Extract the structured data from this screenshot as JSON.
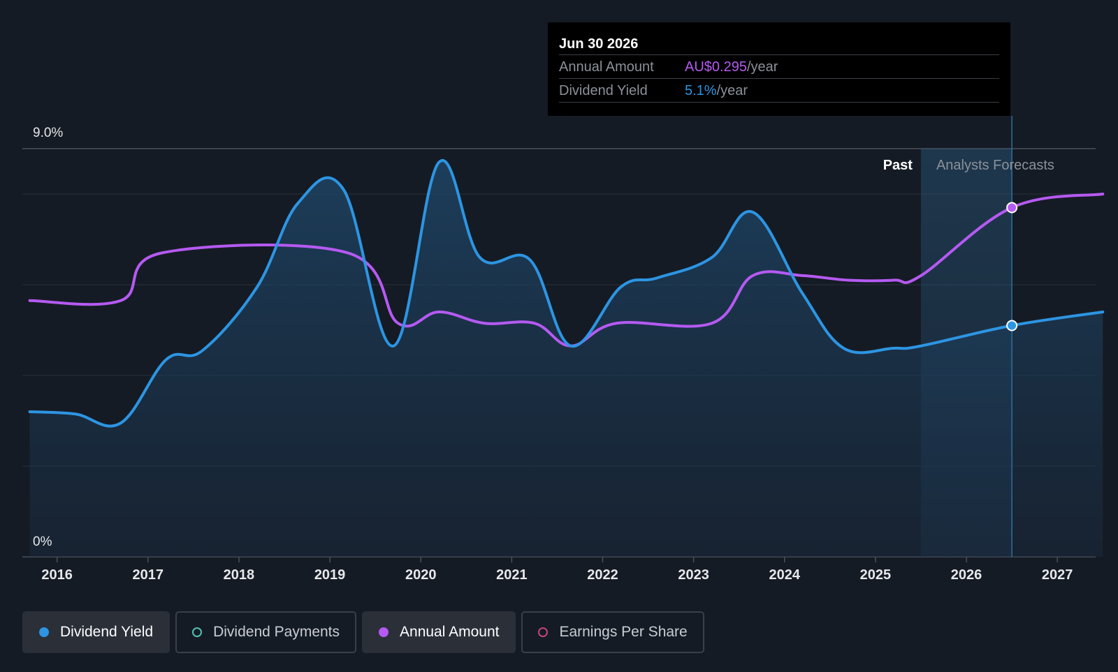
{
  "tooltip": {
    "date": "Jun 30 2026",
    "rows": [
      {
        "label": "Annual Amount",
        "value": "AU$0.295",
        "unit": "/year"
      },
      {
        "label": "Dividend Yield",
        "value": "5.1%",
        "unit": "/year"
      }
    ]
  },
  "legend": [
    {
      "label": "Dividend Yield",
      "color": "#2d95e3",
      "active": true,
      "filled": true
    },
    {
      "label": "Dividend Payments",
      "color": "#4fc3b4",
      "active": false,
      "filled": false
    },
    {
      "label": "Annual Amount",
      "color": "#b55af2",
      "active": true,
      "filled": true
    },
    {
      "label": "Earnings Per Share",
      "color": "#c2457a",
      "active": false,
      "filled": false
    }
  ],
  "chart_data": {
    "type": "line",
    "y_tick_labels": [
      "9.0%",
      "0%"
    ],
    "ylim": [
      0,
      9.0
    ],
    "x_tick_labels": [
      "2016",
      "2017",
      "2018",
      "2019",
      "2020",
      "2021",
      "2022",
      "2023",
      "2024",
      "2025",
      "2026",
      "2027"
    ],
    "xlim": [
      2015.68,
      2027.5
    ],
    "regions": {
      "past_label": "Past",
      "forecast_label": "Analysts Forecasts",
      "forecast_start": 2025.5,
      "highlight_x": 2026.5
    },
    "grid": true,
    "colors": {
      "yield": "#2d95e3",
      "amount": "#b55af2"
    },
    "series": [
      {
        "name": "Dividend Yield",
        "x": [
          2015.7,
          2016.2,
          2016.7,
          2017.2,
          2017.6,
          2018.2,
          2018.65,
          2019.15,
          2019.7,
          2020.2,
          2020.65,
          2021.2,
          2021.65,
          2022.2,
          2022.6,
          2023.2,
          2023.65,
          2024.2,
          2024.65,
          2025.2,
          2025.5,
          2026.5,
          2027.5
        ],
        "y": [
          3.2,
          3.15,
          2.95,
          4.35,
          4.55,
          5.95,
          7.8,
          8.1,
          4.65,
          8.7,
          6.6,
          6.55,
          4.65,
          5.95,
          6.15,
          6.6,
          7.6,
          5.8,
          4.6,
          4.6,
          4.65,
          5.1,
          5.4
        ]
      },
      {
        "name": "Annual Amount",
        "x": [
          2015.7,
          2016.7,
          2017.15,
          2019.2,
          2019.75,
          2020.2,
          2020.7,
          2021.25,
          2021.65,
          2022.15,
          2023.2,
          2023.65,
          2024.2,
          2024.7,
          2025.2,
          2025.5,
          2026.5,
          2027.5
        ],
        "y": [
          5.65,
          5.65,
          6.7,
          6.7,
          5.15,
          5.4,
          5.15,
          5.15,
          4.65,
          5.15,
          5.15,
          6.2,
          6.2,
          6.1,
          6.1,
          6.2,
          7.7,
          8.0
        ]
      }
    ]
  }
}
